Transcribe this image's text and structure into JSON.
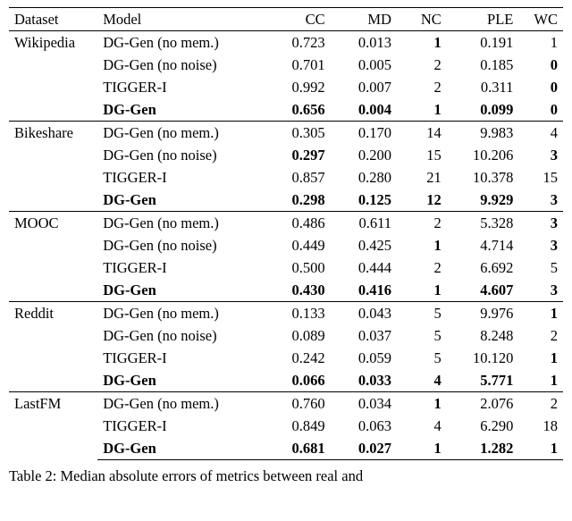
{
  "table": {
    "columns": [
      "Dataset",
      "Model",
      "CC",
      "MD",
      "NC",
      "PLE",
      "WC"
    ],
    "col_align": [
      "left",
      "left",
      "right",
      "right",
      "right",
      "right",
      "right"
    ],
    "col_widths_pct": [
      16,
      30,
      12,
      12,
      9,
      13,
      8
    ],
    "groups": [
      {
        "dataset": "Wikipedia",
        "rows": [
          {
            "model": "DG-Gen (no mem.)",
            "cc": "0.723",
            "md": "0.013",
            "nc": "1",
            "ple": "0.191",
            "wc": "1",
            "bold": {
              "nc": true
            }
          },
          {
            "model": "DG-Gen (no noise)",
            "cc": "0.701",
            "md": "0.005",
            "nc": "2",
            "ple": "0.185",
            "wc": "0",
            "bold": {
              "wc": true
            }
          },
          {
            "model": "TIGGER-I",
            "cc": "0.992",
            "md": "0.007",
            "nc": "2",
            "ple": "0.311",
            "wc": "0",
            "bold": {
              "wc": true
            }
          },
          {
            "model": "DG-Gen",
            "cc": "0.656",
            "md": "0.004",
            "nc": "1",
            "ple": "0.099",
            "wc": "0",
            "bold": {
              "model": true,
              "cc": true,
              "md": true,
              "nc": true,
              "ple": true,
              "wc": true
            }
          }
        ]
      },
      {
        "dataset": "Bikeshare",
        "rows": [
          {
            "model": "DG-Gen (no mem.)",
            "cc": "0.305",
            "md": "0.170",
            "nc": "14",
            "ple": "9.983",
            "wc": "4",
            "bold": {}
          },
          {
            "model": "DG-Gen (no noise)",
            "cc": "0.297",
            "md": "0.200",
            "nc": "15",
            "ple": "10.206",
            "wc": "3",
            "bold": {
              "cc": true,
              "wc": true
            }
          },
          {
            "model": "TIGGER-I",
            "cc": "0.857",
            "md": "0.280",
            "nc": "21",
            "ple": "10.378",
            "wc": "15",
            "bold": {}
          },
          {
            "model": "DG-Gen",
            "cc": "0.298",
            "md": "0.125",
            "nc": "12",
            "ple": "9.929",
            "wc": "3",
            "bold": {
              "model": true,
              "cc": true,
              "md": true,
              "nc": true,
              "ple": true,
              "wc": true
            }
          }
        ]
      },
      {
        "dataset": "MOOC",
        "rows": [
          {
            "model": "DG-Gen (no mem.)",
            "cc": "0.486",
            "md": "0.611",
            "nc": "2",
            "ple": "5.328",
            "wc": "3",
            "bold": {
              "wc": true
            }
          },
          {
            "model": "DG-Gen (no noise)",
            "cc": "0.449",
            "md": "0.425",
            "nc": "1",
            "ple": "4.714",
            "wc": "3",
            "bold": {
              "nc": true,
              "wc": true
            }
          },
          {
            "model": "TIGGER-I",
            "cc": "0.500",
            "md": "0.444",
            "nc": "2",
            "ple": "6.692",
            "wc": "5",
            "bold": {}
          },
          {
            "model": "DG-Gen",
            "cc": "0.430",
            "md": "0.416",
            "nc": "1",
            "ple": "4.607",
            "wc": "3",
            "bold": {
              "model": true,
              "cc": true,
              "md": true,
              "nc": true,
              "ple": true,
              "wc": true
            }
          }
        ]
      },
      {
        "dataset": "Reddit",
        "rows": [
          {
            "model": "DG-Gen (no mem.)",
            "cc": "0.133",
            "md": "0.043",
            "nc": "5",
            "ple": "9.976",
            "wc": "1",
            "bold": {
              "wc": true
            }
          },
          {
            "model": "DG-Gen (no noise)",
            "cc": "0.089",
            "md": "0.037",
            "nc": "5",
            "ple": "8.248",
            "wc": "2",
            "bold": {}
          },
          {
            "model": "TIGGER-I",
            "cc": "0.242",
            "md": "0.059",
            "nc": "5",
            "ple": "10.120",
            "wc": "1",
            "bold": {
              "wc": true
            }
          },
          {
            "model": "DG-Gen",
            "cc": "0.066",
            "md": "0.033",
            "nc": "4",
            "ple": "5.771",
            "wc": "1",
            "bold": {
              "model": true,
              "cc": true,
              "md": true,
              "nc": true,
              "ple": true,
              "wc": true
            }
          }
        ]
      },
      {
        "dataset": "LastFM",
        "rows": [
          {
            "model": "DG-Gen (no mem.)",
            "cc": "0.760",
            "md": "0.034",
            "nc": "1",
            "ple": "2.076",
            "wc": "2",
            "bold": {
              "nc": true
            }
          },
          {
            "model": "TIGGER-I",
            "cc": "0.849",
            "md": "0.063",
            "nc": "4",
            "ple": "6.290",
            "wc": "18",
            "bold": {}
          },
          {
            "model": "DG-Gen",
            "cc": "0.681",
            "md": "0.027",
            "nc": "1",
            "ple": "1.282",
            "wc": "1",
            "bold": {
              "model": true,
              "cc": true,
              "md": true,
              "nc": true,
              "ple": true,
              "wc": true
            }
          }
        ]
      }
    ],
    "rule_color": "#000000",
    "header_fontsize_pt": 12,
    "body_fontsize_pt": 12,
    "font_family": "Times New Roman"
  },
  "caption": "Table 2: Median absolute errors of metrics between real and"
}
